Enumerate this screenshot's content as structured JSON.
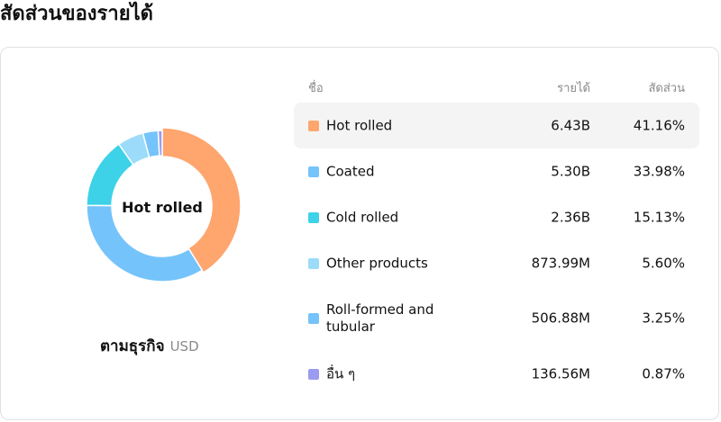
{
  "page": {
    "title": "สัดส่วนของรายได้"
  },
  "donut": {
    "center_label": "Hot rolled"
  },
  "subtitle": {
    "main": "ตามธุรกิจ",
    "unit": "USD"
  },
  "table": {
    "headers": {
      "name": "ชื่อ",
      "revenue": "รายได้",
      "share": "สัดส่วน"
    },
    "active_row": 0
  },
  "chart_data": {
    "type": "pie",
    "donut": true,
    "labels": [
      "Hot rolled",
      "Coated",
      "Cold rolled",
      "Other products",
      "Roll-formed and tubular",
      "อื่น ๆ"
    ],
    "revenue": [
      "6.43B",
      "5.30B",
      "2.36B",
      "873.99M",
      "506.88M",
      "136.56M"
    ],
    "shares": [
      "41.16%",
      "33.98%",
      "15.13%",
      "5.60%",
      "3.25%",
      "0.87%"
    ],
    "values": [
      41.16,
      33.98,
      15.13,
      5.6,
      3.25,
      0.87
    ],
    "colors": [
      "#FFA56E",
      "#75C3FB",
      "#3DD2E8",
      "#9CDCFA",
      "#75C3FB",
      "#9B9BF0"
    ],
    "highlight_index": 0
  }
}
